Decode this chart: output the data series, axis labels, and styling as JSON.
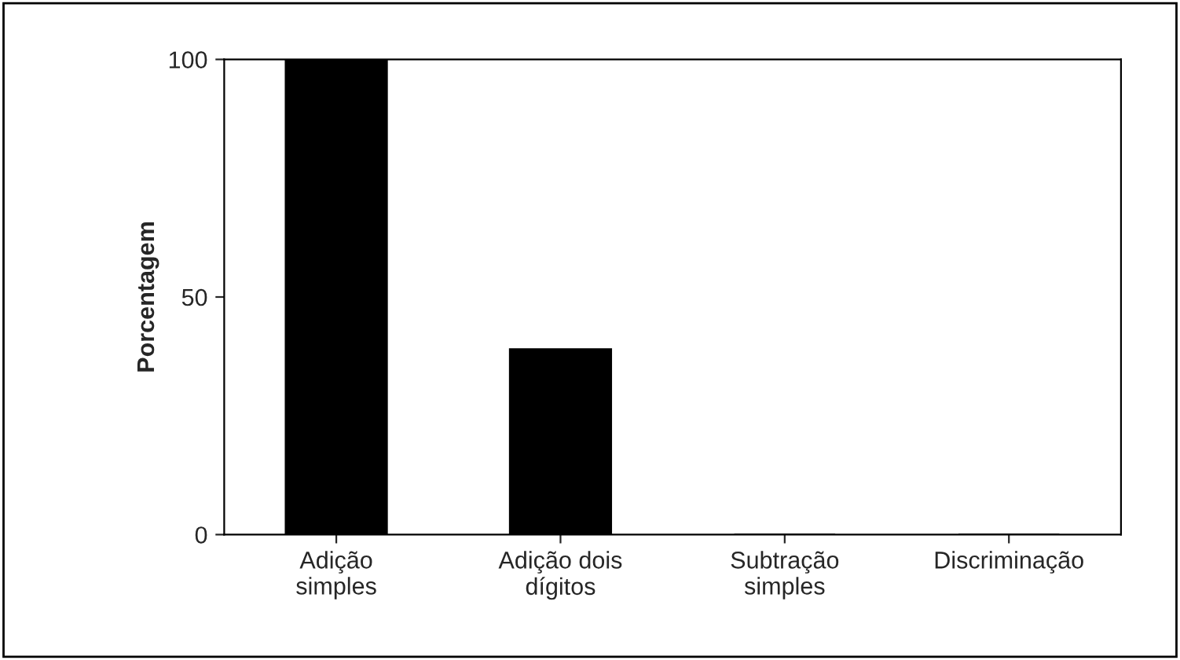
{
  "chart_data": {
    "type": "bar",
    "ylabel": "Porcentagem",
    "categories": [
      "Adição\nsimples",
      "Adição dois\ndígitos",
      "Subtração\nsimples",
      "Discriminação"
    ],
    "values": [
      100,
      39,
      0,
      0
    ],
    "color": "#000000",
    "ylim": [
      0,
      100
    ],
    "yticks": [
      0,
      50,
      100
    ],
    "grid": false
  }
}
